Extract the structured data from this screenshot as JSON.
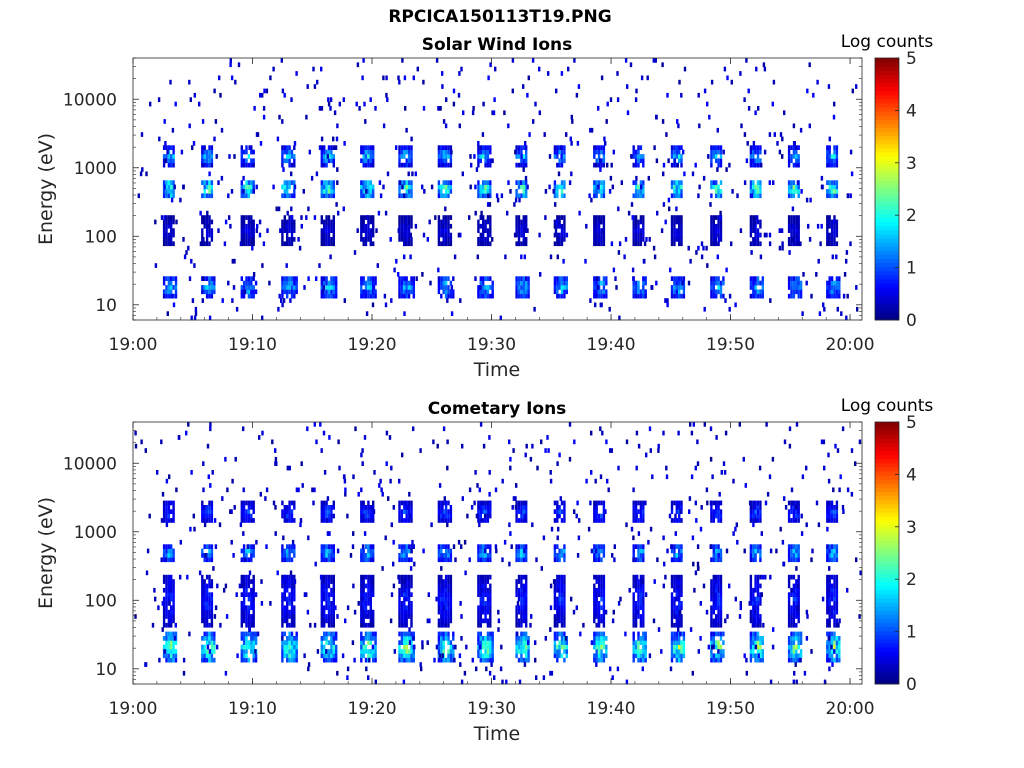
{
  "figure": {
    "title": "RPCICA150113T19.PNG"
  },
  "chart_data": [
    {
      "type": "heatmap",
      "title": "Solar Wind Ions",
      "xlabel": "Time",
      "ylabel": "Energy (eV)",
      "xticks": [
        "19:00",
        "19:10",
        "19:20",
        "19:30",
        "19:40",
        "19:50",
        "20:00"
      ],
      "xlim": [
        "19:00",
        "20:01"
      ],
      "yticks": [
        "10",
        "100",
        "1000",
        "10000"
      ],
      "ylim": [
        6,
        40000
      ],
      "yscale": "log",
      "colorbar": {
        "label": "Log counts",
        "ticks": [
          "0",
          "1",
          "2",
          "3",
          "4",
          "5"
        ],
        "range": [
          0,
          5
        ],
        "colormap": "jet"
      },
      "scan_times_min": [
        2.5,
        5.7,
        9.0,
        12.4,
        15.7,
        19.0,
        22.2,
        25.5,
        28.8,
        32.0,
        35.2,
        38.5,
        41.8,
        45.0,
        48.3,
        51.6,
        54.8,
        58.0
      ],
      "bands": [
        {
          "energy_range_eV": [
            12,
            28
          ],
          "peak_log_counts": 1.8
        },
        {
          "energy_range_eV": [
            350,
            700
          ],
          "peak_log_counts": 2.8
        },
        {
          "energy_range_eV": [
            1100,
            2000
          ],
          "peak_log_counts": 2.0
        },
        {
          "energy_range_eV": [
            70,
            200
          ],
          "peak_log_counts": 0.6
        }
      ]
    },
    {
      "type": "heatmap",
      "title": "Cometary Ions",
      "xlabel": "Time",
      "ylabel": "Energy (eV)",
      "xticks": [
        "19:00",
        "19:10",
        "19:20",
        "19:30",
        "19:40",
        "19:50",
        "20:00"
      ],
      "xlim": [
        "19:00",
        "20:01"
      ],
      "yticks": [
        "10",
        "100",
        "1000",
        "10000"
      ],
      "ylim": [
        6,
        40000
      ],
      "yscale": "log",
      "colorbar": {
        "label": "Log counts",
        "ticks": [
          "0",
          "1",
          "2",
          "3",
          "4",
          "5"
        ],
        "range": [
          0,
          5
        ],
        "colormap": "jet"
      },
      "scan_times_min": [
        2.5,
        5.7,
        9.0,
        12.4,
        15.7,
        19.0,
        22.2,
        25.5,
        28.8,
        32.0,
        35.2,
        38.5,
        41.8,
        45.0,
        48.3,
        51.6,
        54.8,
        58.0
      ],
      "bands": [
        {
          "energy_range_eV": [
            12,
            35
          ],
          "peak_log_counts": 2.9
        },
        {
          "energy_range_eV": [
            40,
            250
          ],
          "peak_log_counts": 1.0
        },
        {
          "energy_range_eV": [
            350,
            700
          ],
          "peak_log_counts": 1.9
        },
        {
          "energy_range_eV": [
            1300,
            2800
          ],
          "peak_log_counts": 1.2
        }
      ]
    }
  ]
}
